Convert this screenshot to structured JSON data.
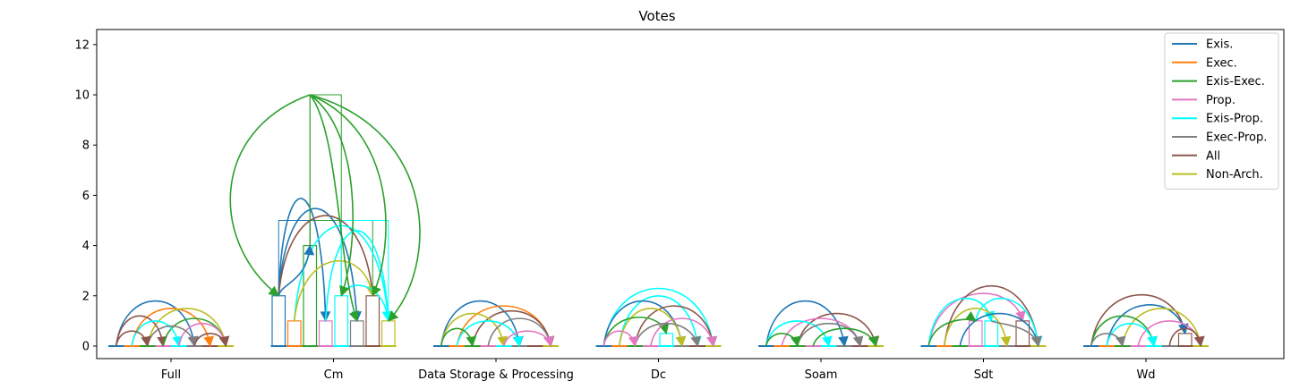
{
  "chart_data": {
    "type": "bar",
    "title": "Votes",
    "categories": [
      "Full",
      "Cm",
      "Data Storage & Processing",
      "Dc",
      "Soam",
      "Sdt",
      "Wd"
    ],
    "yticks": [
      "0",
      "2",
      "4",
      "6",
      "8",
      "10",
      "12"
    ],
    "ylim": [
      -0.5,
      12.6
    ],
    "grid": false,
    "legend_position": "top-right",
    "series": [
      {
        "name": "Exis.",
        "color": "#1f77b4",
        "values": [
          0,
          2,
          0,
          0,
          0,
          0,
          0
        ]
      },
      {
        "name": "Exec.",
        "color": "#ff7f0e",
        "values": [
          0,
          1,
          0,
          0,
          0,
          0,
          0
        ]
      },
      {
        "name": "Exis-Exec.",
        "color": "#2ca02c",
        "values": [
          0,
          4,
          0,
          0,
          0,
          0,
          0
        ]
      },
      {
        "name": "Prop.",
        "color": "#e377c2",
        "values": [
          0,
          1,
          0,
          0,
          0,
          1,
          0
        ]
      },
      {
        "name": "Exis-Prop.",
        "color": "#00ffff",
        "values": [
          0,
          2,
          0,
          0.5,
          0,
          1,
          0
        ]
      },
      {
        "name": "Exec-Prop.",
        "color": "#7f7f7f",
        "values": [
          0,
          1,
          0,
          0,
          0,
          0,
          0
        ]
      },
      {
        "name": "All",
        "color": "#8c564b",
        "values": [
          0,
          2,
          0,
          0,
          0,
          1,
          0.5
        ]
      },
      {
        "name": "Non-Arch.",
        "color": "#bcbd22",
        "values": [
          0,
          1,
          0,
          0,
          0,
          0,
          0
        ]
      }
    ],
    "cm_pairwise_whiskers": [
      {
        "from": 0,
        "to": 2,
        "level": 5,
        "color": "#1f77b4"
      },
      {
        "from": 2,
        "to": 6,
        "level": 5,
        "color": "#2ca02c"
      },
      {
        "from": 2,
        "to": 4,
        "level": 10,
        "color": "#2ca02c"
      },
      {
        "from": 4,
        "to": 7,
        "level": 5,
        "color": "#00ffff"
      }
    ],
    "arc_links": [
      {
        "group": 0,
        "from": 0,
        "to": 5,
        "h": 1.8,
        "color": "#1f77b4"
      },
      {
        "group": 0,
        "from": 1,
        "to": 6,
        "h": 1.5,
        "color": "#ff7f0e"
      },
      {
        "group": 0,
        "from": 2,
        "to": 7,
        "h": 1.5,
        "color": "#bcbd22"
      },
      {
        "group": 0,
        "from": 0,
        "to": 3,
        "h": 1.2,
        "color": "#8c564b"
      },
      {
        "group": 0,
        "from": 3,
        "to": 7,
        "h": 1.1,
        "color": "#2ca02c"
      },
      {
        "group": 0,
        "from": 1,
        "to": 4,
        "h": 1.0,
        "color": "#00ffff"
      },
      {
        "group": 0,
        "from": 4,
        "to": 7,
        "h": 0.9,
        "color": "#e377c2"
      },
      {
        "group": 0,
        "from": 2,
        "to": 5,
        "h": 0.8,
        "color": "#7f7f7f"
      },
      {
        "group": 0,
        "from": 0,
        "to": 2,
        "h": 0.6,
        "color": "#8c564b"
      },
      {
        "group": 0,
        "from": 5,
        "to": 7,
        "h": 0.5,
        "color": "#8c564b"
      },
      {
        "group": 1,
        "from": 0,
        "to": 3,
        "h": 6.0,
        "color": "#1f77b4"
      },
      {
        "group": 1,
        "from": 0,
        "to": 5,
        "h": 5.6,
        "color": "#1f77b4"
      },
      {
        "group": 1,
        "from": 0,
        "to": 6,
        "h": 5.2,
        "color": "#8c564b"
      },
      {
        "group": 1,
        "from": 1,
        "to": 7,
        "h": 4.8,
        "color": "#00ffff"
      },
      {
        "group": 1,
        "from": 3,
        "to": 7,
        "h": 4.6,
        "color": "#00ffff"
      },
      {
        "group": 1,
        "from": 1,
        "to": 6,
        "h": 3.5,
        "color": "#bcbd22"
      },
      {
        "group": 1,
        "from": 0,
        "to": 2,
        "h": 2.9,
        "color": "#1f77b4"
      },
      {
        "group": 1,
        "from": 4,
        "to": 7,
        "h": 2.5,
        "color": "#00ffff"
      },
      {
        "group": 2,
        "from": 0,
        "to": 5,
        "h": 1.8,
        "color": "#1f77b4"
      },
      {
        "group": 2,
        "from": 1,
        "to": 7,
        "h": 1.6,
        "color": "#ff7f0e"
      },
      {
        "group": 2,
        "from": 2,
        "to": 7,
        "h": 1.4,
        "color": "#8c564b"
      },
      {
        "group": 2,
        "from": 0,
        "to": 4,
        "h": 1.3,
        "color": "#bcbd22"
      },
      {
        "group": 2,
        "from": 3,
        "to": 7,
        "h": 1.1,
        "color": "#7f7f7f"
      },
      {
        "group": 2,
        "from": 1,
        "to": 5,
        "h": 1.0,
        "color": "#00ffff"
      },
      {
        "group": 2,
        "from": 0,
        "to": 2,
        "h": 0.7,
        "color": "#2ca02c"
      },
      {
        "group": 2,
        "from": 4,
        "to": 7,
        "h": 0.6,
        "color": "#e377c2"
      },
      {
        "group": 3,
        "from": 0,
        "to": 7,
        "h": 2.3,
        "color": "#00ffff"
      },
      {
        "group": 3,
        "from": 1,
        "to": 6,
        "h": 2.0,
        "color": "#00ffff"
      },
      {
        "group": 3,
        "from": 0,
        "to": 5,
        "h": 1.8,
        "color": "#1f77b4"
      },
      {
        "group": 3,
        "from": 2,
        "to": 7,
        "h": 1.6,
        "color": "#8c564b"
      },
      {
        "group": 3,
        "from": 1,
        "to": 5,
        "h": 1.5,
        "color": "#bcbd22"
      },
      {
        "group": 3,
        "from": 0,
        "to": 4,
        "h": 1.2,
        "color": "#2ca02c"
      },
      {
        "group": 3,
        "from": 3,
        "to": 7,
        "h": 1.1,
        "color": "#e377c2"
      },
      {
        "group": 3,
        "from": 2,
        "to": 6,
        "h": 0.9,
        "color": "#7f7f7f"
      },
      {
        "group": 3,
        "from": 0,
        "to": 2,
        "h": 0.6,
        "color": "#e377c2"
      },
      {
        "group": 4,
        "from": 0,
        "to": 5,
        "h": 1.8,
        "color": "#1f77b4"
      },
      {
        "group": 4,
        "from": 2,
        "to": 7,
        "h": 1.3,
        "color": "#8c564b"
      },
      {
        "group": 4,
        "from": 1,
        "to": 6,
        "h": 1.1,
        "color": "#e377c2"
      },
      {
        "group": 4,
        "from": 0,
        "to": 4,
        "h": 1.0,
        "color": "#00ffff"
      },
      {
        "group": 4,
        "from": 2,
        "to": 6,
        "h": 0.9,
        "color": "#7f7f7f"
      },
      {
        "group": 4,
        "from": 3,
        "to": 7,
        "h": 0.7,
        "color": "#2ca02c"
      },
      {
        "group": 4,
        "from": 0,
        "to": 2,
        "h": 0.5,
        "color": "#2ca02c"
      },
      {
        "group": 5,
        "from": 0,
        "to": 6,
        "h": 2.2,
        "color": "#e377c2"
      },
      {
        "group": 5,
        "from": 1,
        "to": 7,
        "h": 2.4,
        "color": "#8c564b"
      },
      {
        "group": 5,
        "from": 0,
        "to": 4,
        "h": 2.0,
        "color": "#00ffff"
      },
      {
        "group": 5,
        "from": 3,
        "to": 7,
        "h": 2.0,
        "color": "#00ffff"
      },
      {
        "group": 5,
        "from": 1,
        "to": 5,
        "h": 1.5,
        "color": "#bcbd22"
      },
      {
        "group": 5,
        "from": 2,
        "to": 7,
        "h": 1.3,
        "color": "#1f77b4"
      },
      {
        "group": 5,
        "from": 0,
        "to": 3,
        "h": 1.1,
        "color": "#2ca02c"
      },
      {
        "group": 5,
        "from": 4,
        "to": 7,
        "h": 0.9,
        "color": "#7f7f7f"
      },
      {
        "group": 6,
        "from": 0,
        "to": 6,
        "h": 2.1,
        "color": "#8c564b"
      },
      {
        "group": 6,
        "from": 1,
        "to": 6,
        "h": 1.7,
        "color": "#1f77b4"
      },
      {
        "group": 6,
        "from": 2,
        "to": 7,
        "h": 1.5,
        "color": "#bcbd22"
      },
      {
        "group": 6,
        "from": 0,
        "to": 4,
        "h": 1.2,
        "color": "#2ca02c"
      },
      {
        "group": 6,
        "from": 3,
        "to": 7,
        "h": 1.0,
        "color": "#e377c2"
      },
      {
        "group": 6,
        "from": 1,
        "to": 4,
        "h": 0.9,
        "color": "#00ffff"
      },
      {
        "group": 6,
        "from": 5,
        "to": 7,
        "h": 0.7,
        "color": "#8c564b"
      },
      {
        "group": 6,
        "from": 0,
        "to": 2,
        "h": 0.5,
        "color": "#7f7f7f"
      }
    ],
    "cm_self_loops": [
      {
        "from": 2,
        "to": 0,
        "h": 10,
        "color": "#2ca02c",
        "bulge": -0.7
      },
      {
        "from": 2,
        "to": 4,
        "h": 10,
        "color": "#2ca02c",
        "bulge": 0.35
      },
      {
        "from": 2,
        "to": 6,
        "h": 10,
        "color": "#2ca02c",
        "bulge": 0.6
      },
      {
        "from": 2,
        "to": 7,
        "h": 10,
        "color": "#2ca02c",
        "bulge": 0.9
      },
      {
        "from": 2,
        "to": 5,
        "h": 10,
        "color": "#2ca02c",
        "bulge": 0.2
      }
    ]
  }
}
